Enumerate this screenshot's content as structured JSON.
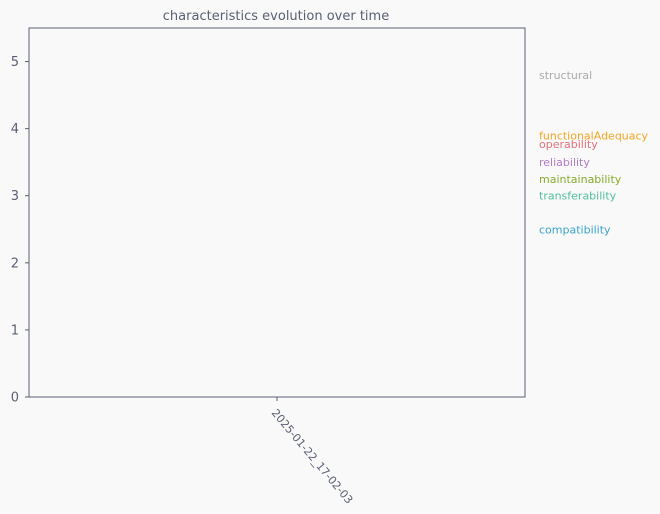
{
  "chart_data": {
    "type": "line",
    "title": "characteristics evolution over time",
    "xlabel": "",
    "ylabel": "",
    "x": [
      "2025-01-22_17-02-03"
    ],
    "xlim_padding_note": "",
    "ylim": [
      0,
      5.5
    ],
    "yticks": [
      0,
      1,
      2,
      3,
      4,
      5
    ],
    "grid": false,
    "legend_placement": "right",
    "series": [
      {
        "name": "structural",
        "values": [
          4.8
        ],
        "color": "#aaaaaa"
      },
      {
        "name": "functionalAdequacy",
        "values": [
          3.9
        ],
        "color": "#f5a623"
      },
      {
        "name": "operability",
        "values": [
          3.77
        ],
        "color": "#e8707a"
      },
      {
        "name": "reliability",
        "values": [
          3.5
        ],
        "color": "#b07cc6"
      },
      {
        "name": "maintainability",
        "values": [
          3.25
        ],
        "color": "#8aaa2a"
      },
      {
        "name": "transferability",
        "values": [
          3.0
        ],
        "color": "#4fbf9a"
      },
      {
        "name": "compatibility",
        "values": [
          2.5
        ],
        "color": "#3aa3c9"
      }
    ],
    "colors": {
      "background": "#f9f9f9",
      "axis": "#5a5f73",
      "text": "#5a5f73"
    }
  }
}
